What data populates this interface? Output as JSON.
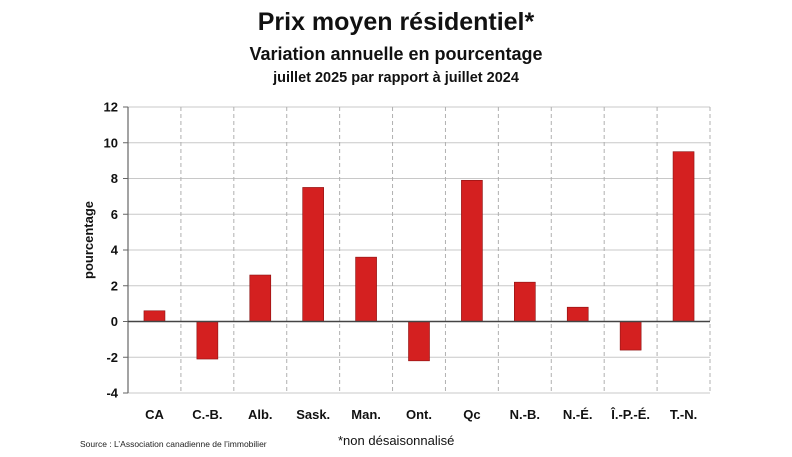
{
  "chart_data": {
    "type": "bar",
    "title": "Prix moyen résidentiel*",
    "subtitle": "Variation annuelle en pourcentage",
    "subtitle2": "juillet 2025 par rapport à juillet 2024",
    "ylabel": "pourcentage",
    "xlabel": "",
    "categories": [
      "CA",
      "C.-B.",
      "Alb.",
      "Sask.",
      "Man.",
      "Ont.",
      "Qc",
      "N.-B.",
      "N.-É.",
      "Î.-P.-É.",
      "T.-N."
    ],
    "values": [
      0.6,
      -2.1,
      2.6,
      7.5,
      3.6,
      -2.2,
      7.9,
      2.2,
      0.8,
      -1.6,
      9.5
    ],
    "ylim": [
      -4,
      12
    ],
    "yticks": [
      12,
      10,
      8,
      6,
      4,
      2,
      0,
      -2,
      -4
    ],
    "bar_color": "#d42020",
    "grid": true,
    "legend": "none"
  },
  "footer": {
    "source": "Source : L’Association canadienne de l’immobilier",
    "note": "*non désaisonnalisé"
  }
}
